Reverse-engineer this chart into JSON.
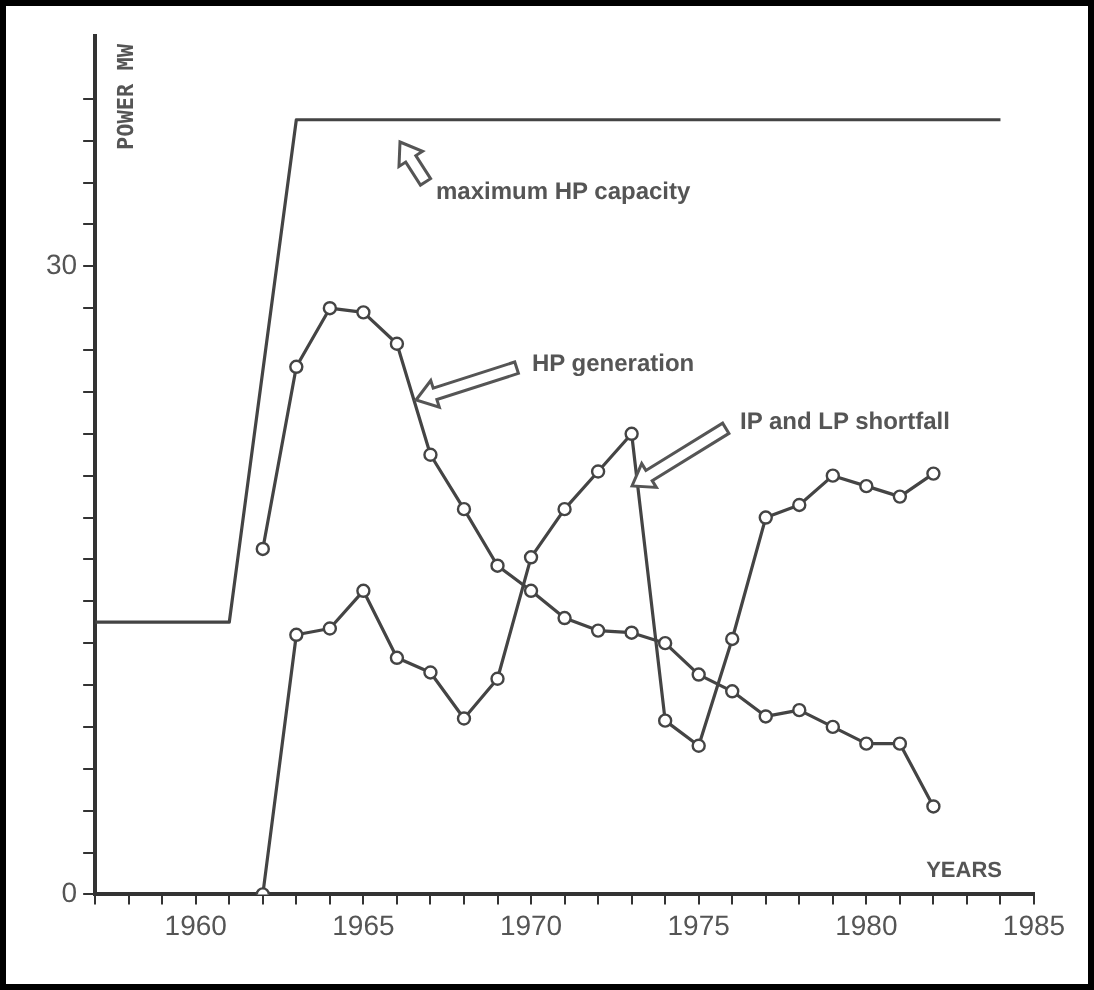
{
  "chart_data": {
    "type": "line",
    "xlabel": "YEARS",
    "ylabel": "POWER MW",
    "xlim": [
      1957,
      1985
    ],
    "ylim": [
      0,
      41
    ],
    "xticks": [
      {
        "value": 1957,
        "label": null
      },
      {
        "value": 1958,
        "label": null
      },
      {
        "value": 1959,
        "label": null
      },
      1960,
      {
        "value": 1961,
        "label": null
      },
      {
        "value": 1962,
        "label": null
      },
      {
        "value": 1963,
        "label": null
      },
      {
        "value": 1964,
        "label": null
      },
      1965,
      {
        "value": 1966,
        "label": null
      },
      {
        "value": 1967,
        "label": null
      },
      {
        "value": 1968,
        "label": null
      },
      {
        "value": 1969,
        "label": null
      },
      1970,
      {
        "value": 1971,
        "label": null
      },
      {
        "value": 1972,
        "label": null
      },
      {
        "value": 1973,
        "label": null
      },
      {
        "value": 1974,
        "label": null
      },
      1975,
      {
        "value": 1976,
        "label": null
      },
      {
        "value": 1977,
        "label": null
      },
      {
        "value": 1978,
        "label": null
      },
      {
        "value": 1979,
        "label": null
      },
      1980,
      {
        "value": 1981,
        "label": null
      },
      {
        "value": 1982,
        "label": null
      },
      {
        "value": 1983,
        "label": null
      },
      {
        "value": 1984,
        "label": null
      },
      1985
    ],
    "yticks": [
      0,
      {
        "value": 2,
        "label": null
      },
      {
        "value": 4,
        "label": null
      },
      {
        "value": 6,
        "label": null
      },
      {
        "value": 8,
        "label": null
      },
      {
        "value": 10,
        "label": null
      },
      {
        "value": 12,
        "label": null
      },
      {
        "value": 14,
        "label": null
      },
      {
        "value": 16,
        "label": null
      },
      {
        "value": 18,
        "label": null
      },
      {
        "value": 20,
        "label": null
      },
      {
        "value": 22,
        "label": null
      },
      {
        "value": 24,
        "label": null
      },
      {
        "value": 26,
        "label": null
      },
      {
        "value": 28,
        "label": null
      },
      30,
      {
        "value": 32,
        "label": null
      },
      {
        "value": 34,
        "label": null
      },
      {
        "value": 36,
        "label": null
      },
      {
        "value": 38,
        "label": null
      }
    ],
    "grid": false,
    "legend": false,
    "marker": "circle",
    "line_style": "solid",
    "series": [
      {
        "color": "#444444",
        "marker": "none",
        "x": [
          1957,
          1961,
          1963,
          1984
        ],
        "values": [
          13,
          13,
          37,
          37
        ]
      },
      {
        "color": "#444444",
        "x": [
          1962,
          1963,
          1964,
          1965,
          1966,
          1967,
          1968,
          1969,
          1970,
          1971,
          1972,
          1973,
          1974,
          1975,
          1976,
          1977,
          1978,
          1979,
          1980,
          1981,
          1982
        ],
        "values": [
          16.5,
          25.2,
          28,
          27.8,
          26.3,
          21,
          18.4,
          15.7,
          14.5,
          13.2,
          12.6,
          12.5,
          12,
          10.5,
          9.7,
          8.5,
          8.8,
          8,
          7.2,
          7.2,
          4.2
        ]
      },
      {
        "color": "#444444",
        "x": [
          1962,
          1963,
          1964,
          1965,
          1966,
          1967,
          1968,
          1969,
          1970,
          1971,
          1972,
          1973,
          1974,
          1975,
          1976,
          1977,
          1978,
          1979,
          1980,
          1981,
          1982
        ],
        "values": [
          0,
          12.4,
          12.7,
          14.5,
          11.3,
          10.6,
          8.4,
          10.3,
          16.1,
          18.4,
          20.2,
          22,
          8.3,
          7.1,
          12.2,
          18,
          18.6,
          20,
          19.5,
          19,
          20.1
        ]
      }
    ],
    "annotations": [
      "maximum HP capacity",
      "HP generation",
      "IP and LP shortfall"
    ]
  }
}
